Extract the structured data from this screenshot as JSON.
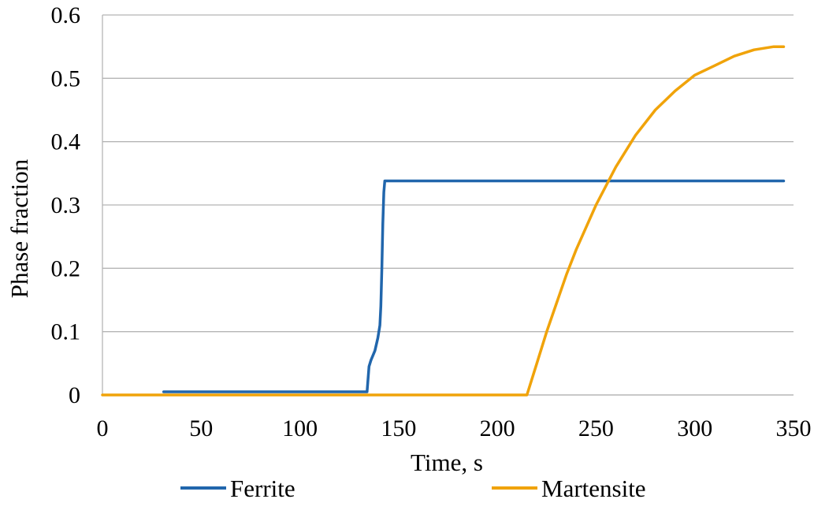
{
  "chart_data": {
    "type": "line",
    "title": "",
    "xlabel": "Time, s",
    "ylabel": "Phase fraction",
    "xlim": [
      0,
      350
    ],
    "ylim": [
      0,
      0.6
    ],
    "x_ticks": [
      0,
      50,
      100,
      150,
      200,
      250,
      300,
      350
    ],
    "y_ticks": [
      0,
      0.1,
      0.2,
      0.3,
      0.4,
      0.5,
      0.6
    ],
    "x_tick_labels": [
      "0",
      "50",
      "100",
      "150",
      "200",
      "250",
      "300",
      "350"
    ],
    "y_tick_labels": [
      "0",
      "0.1",
      "0.2",
      "0.3",
      "0.4",
      "0.5",
      "0.6"
    ],
    "grid": "horizontal",
    "legend_position": "bottom",
    "series": [
      {
        "name": "Ferrite",
        "color": "#2166ac",
        "points": [
          [
            31,
            0.005
          ],
          [
            100,
            0.005
          ],
          [
            134,
            0.005
          ],
          [
            135,
            0.045
          ],
          [
            136,
            0.055
          ],
          [
            138,
            0.07
          ],
          [
            139.5,
            0.09
          ],
          [
            140.5,
            0.11
          ],
          [
            141,
            0.14
          ],
          [
            141.5,
            0.2
          ],
          [
            142,
            0.27
          ],
          [
            142.5,
            0.32
          ],
          [
            143,
            0.338
          ],
          [
            150,
            0.338
          ],
          [
            200,
            0.338
          ],
          [
            250,
            0.338
          ],
          [
            300,
            0.338
          ],
          [
            345,
            0.338
          ]
        ]
      },
      {
        "name": "Martensite",
        "color": "#f0a30a",
        "points": [
          [
            0,
            0
          ],
          [
            100,
            0
          ],
          [
            215,
            0
          ],
          [
            220,
            0.05
          ],
          [
            225,
            0.1
          ],
          [
            230,
            0.145
          ],
          [
            235,
            0.19
          ],
          [
            240,
            0.23
          ],
          [
            250,
            0.3
          ],
          [
            260,
            0.36
          ],
          [
            270,
            0.41
          ],
          [
            280,
            0.45
          ],
          [
            290,
            0.48
          ],
          [
            300,
            0.505
          ],
          [
            310,
            0.52
          ],
          [
            320,
            0.535
          ],
          [
            330,
            0.545
          ],
          [
            340,
            0.55
          ],
          [
            345,
            0.55
          ]
        ]
      }
    ]
  }
}
